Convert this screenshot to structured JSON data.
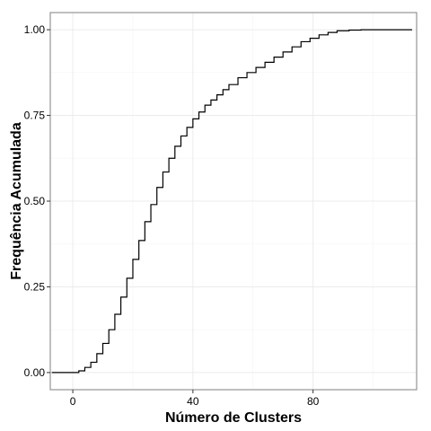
{
  "chart_data": {
    "type": "line",
    "step": true,
    "title": "",
    "xlabel": "Número de Clusters",
    "ylabel": "Frequência Acumulada",
    "xlim": [
      -7.5,
      114.5
    ],
    "ylim": [
      -0.05,
      1.05
    ],
    "xticks": [
      0,
      40,
      80
    ],
    "xtick_labels": [
      "0",
      "40",
      "80"
    ],
    "yticks": [
      0,
      0.25,
      0.5,
      0.75,
      1.0
    ],
    "ytick_labels": [
      "0.00",
      "0.25",
      "0.50",
      "0.75",
      "1.00"
    ],
    "grid": true,
    "legend": "none",
    "colors": {
      "line": "#000000",
      "grid_major": "#ebebeb",
      "grid_minor": "#f5f5f5",
      "panel_border": "#7f7f7f",
      "background": "#ffffff"
    },
    "series": [
      {
        "x": [
          -7,
          2,
          4,
          6,
          8,
          10,
          12,
          14,
          16,
          18,
          20,
          22,
          24,
          26,
          28,
          30,
          32,
          34,
          36,
          38,
          40,
          42,
          44,
          46,
          48,
          50,
          52,
          55,
          58,
          61,
          64,
          67,
          70,
          73,
          76,
          79,
          82,
          85,
          88,
          92,
          96,
          100,
          113
        ],
        "y": [
          0.0,
          0.005,
          0.015,
          0.03,
          0.055,
          0.085,
          0.125,
          0.17,
          0.22,
          0.275,
          0.33,
          0.385,
          0.44,
          0.49,
          0.54,
          0.585,
          0.625,
          0.66,
          0.69,
          0.715,
          0.74,
          0.76,
          0.78,
          0.795,
          0.81,
          0.825,
          0.84,
          0.86,
          0.875,
          0.89,
          0.905,
          0.92,
          0.935,
          0.95,
          0.965,
          0.975,
          0.985,
          0.992,
          0.997,
          0.999,
          1.0,
          1.0,
          1.0
        ]
      }
    ]
  }
}
